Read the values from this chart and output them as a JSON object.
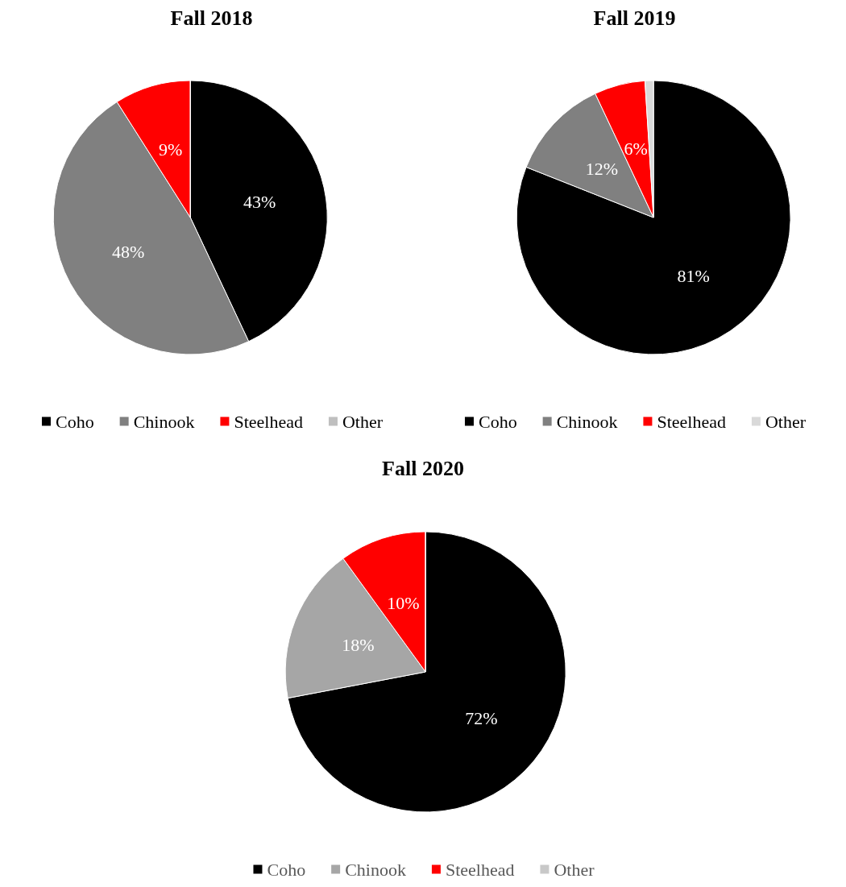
{
  "chart_data": [
    {
      "type": "pie",
      "title": "Fall 2018",
      "categories": [
        "Coho",
        "Chinook",
        "Steelhead",
        "Other"
      ],
      "values": [
        43,
        48,
        9,
        0
      ],
      "colors": [
        "#000000",
        "#808080",
        "#ff0000",
        "#bfbfbf"
      ],
      "value_labels": [
        "43%",
        "48%",
        "9%",
        null
      ],
      "legend": "bottom"
    },
    {
      "type": "pie",
      "title": "Fall 2019",
      "categories": [
        "Coho",
        "Chinook",
        "Steelhead",
        "Other"
      ],
      "values": [
        81,
        12,
        6,
        1
      ],
      "colors": [
        "#000000",
        "#808080",
        "#ff0000",
        "#d9d9d9"
      ],
      "value_labels": [
        "81%",
        "12%",
        "6%",
        null
      ],
      "legend": "bottom"
    },
    {
      "type": "pie",
      "title": "Fall 2020",
      "categories": [
        "Coho",
        "Chinook",
        "Steelhead",
        "Other"
      ],
      "values": [
        72,
        18,
        10,
        0
      ],
      "colors": [
        "#000000",
        "#a6a6a6",
        "#ff0000",
        "#c8c8c8"
      ],
      "value_labels": [
        "72%",
        "18%",
        "10%",
        null
      ],
      "legend": "bottom"
    }
  ]
}
